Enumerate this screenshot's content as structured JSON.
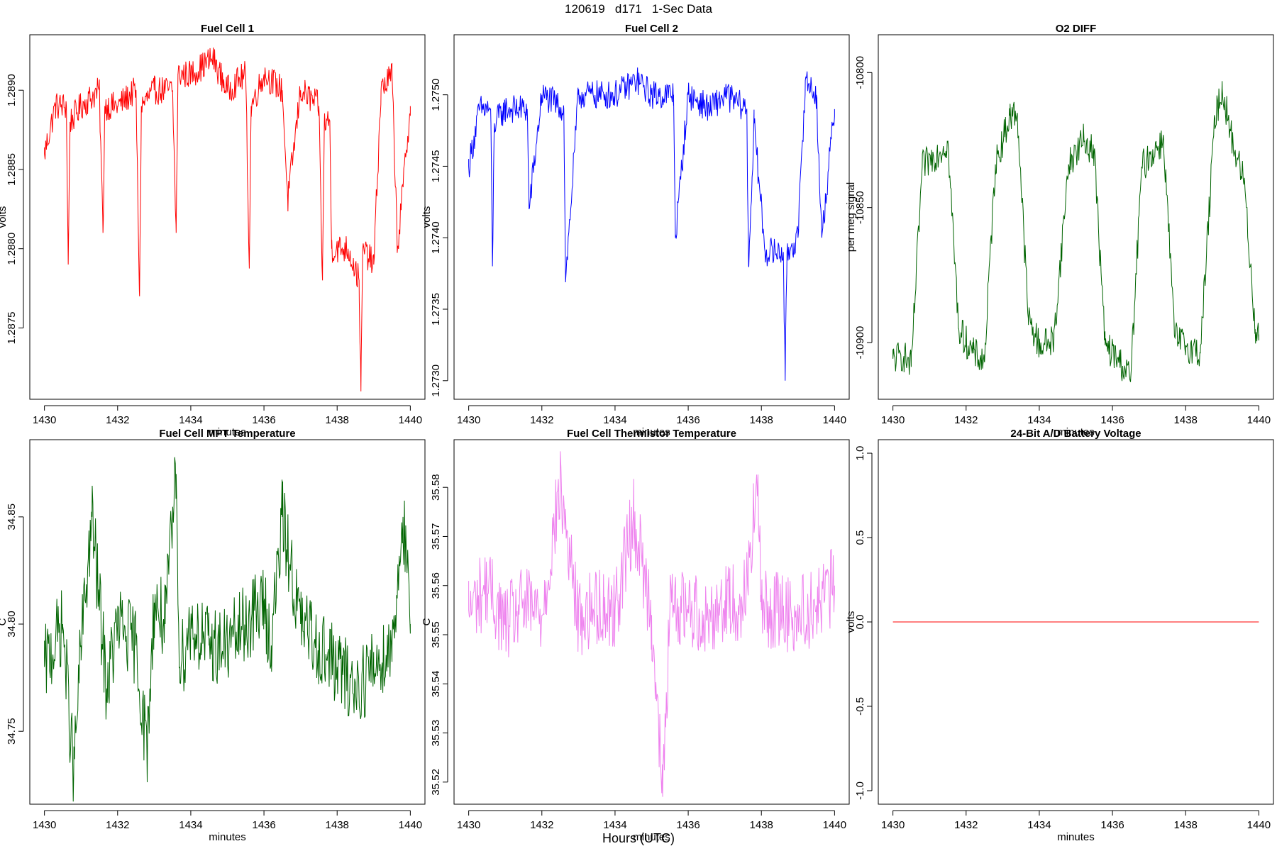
{
  "figure": {
    "title": "120619   d171   1-Sec Data",
    "xlabel": "Hours (UTC)"
  },
  "chart_data": [
    {
      "id": "fc1",
      "type": "line",
      "title": "Fuel Cell 1",
      "xlabel": "minutes",
      "ylabel": "volts",
      "color": "#ff0000",
      "xlim": [
        1429.6,
        1440.4
      ],
      "ylim": [
        1.28705,
        1.28935
      ],
      "xticks": [
        1430,
        1432,
        1434,
        1436,
        1438,
        1440
      ],
      "yticks": [
        1.2875,
        1.288,
        1.2885,
        1.289
      ],
      "ytick_labels": [
        "1.2875",
        "1.2880",
        "1.2885",
        "1.2890"
      ],
      "series": [
        {
          "x": [
            1430,
            1430.3,
            1430.6,
            1430.65,
            1430.7,
            1431,
            1431.5,
            1431.6,
            1431.65,
            1432,
            1432.5,
            1432.6,
            1432.65,
            1433,
            1433.5,
            1433.6,
            1433.65,
            1434,
            1434.6,
            1435,
            1435.5,
            1435.6,
            1435.65,
            1436,
            1436.5,
            1436.65,
            1437,
            1437.5,
            1437.6,
            1437.65,
            1437.8,
            1437.85,
            1438.3,
            1438.6,
            1438.65,
            1438.7,
            1439,
            1439.2,
            1439.5,
            1439.65,
            1440
          ],
          "y": [
            1.2886,
            1.2889,
            1.2889,
            1.2879,
            1.2888,
            1.2889,
            1.289,
            1.2881,
            1.2889,
            1.2889,
            1.289,
            1.2877,
            1.2889,
            1.289,
            1.289,
            1.2881,
            1.2891,
            1.2891,
            1.2892,
            1.289,
            1.2891,
            1.2879,
            1.2889,
            1.2891,
            1.289,
            1.2883,
            1.289,
            1.2889,
            1.2878,
            1.2888,
            1.2888,
            1.288,
            1.288,
            1.2878,
            1.2871,
            1.288,
            1.2879,
            1.289,
            1.2891,
            1.288,
            1.2889
          ]
        }
      ]
    },
    {
      "id": "fc2",
      "type": "line",
      "title": "Fuel Cell 2",
      "xlabel": "minutes",
      "ylabel": "volts",
      "color": "#0000ff",
      "xlim": [
        1429.6,
        1440.4
      ],
      "ylim": [
        1.27287,
        1.27542
      ],
      "xticks": [
        1430,
        1432,
        1434,
        1436,
        1438,
        1440
      ],
      "yticks": [
        1.273,
        1.2735,
        1.274,
        1.2745,
        1.275
      ],
      "ytick_labels": [
        "1.2730",
        "1.2735",
        "1.2740",
        "1.2745",
        "1.2750"
      ],
      "series": [
        {
          "x": [
            1430,
            1430.3,
            1430.6,
            1430.65,
            1430.7,
            1431,
            1431.6,
            1431.65,
            1432,
            1432.6,
            1432.65,
            1433,
            1433.6,
            1434,
            1434.6,
            1435,
            1435.6,
            1435.65,
            1436,
            1436.6,
            1437,
            1437.6,
            1437.65,
            1437.8,
            1438.1,
            1438.6,
            1438.65,
            1438.7,
            1439,
            1439.2,
            1439.5,
            1439.65,
            1440
          ],
          "y": [
            1.2745,
            1.2749,
            1.2749,
            1.2738,
            1.2748,
            1.2749,
            1.2749,
            1.2742,
            1.275,
            1.2749,
            1.2737,
            1.275,
            1.275,
            1.275,
            1.2751,
            1.275,
            1.275,
            1.274,
            1.275,
            1.2749,
            1.275,
            1.2749,
            1.2738,
            1.2748,
            1.2739,
            1.2739,
            1.273,
            1.2739,
            1.274,
            1.2751,
            1.275,
            1.274,
            1.2749
          ]
        }
      ]
    },
    {
      "id": "o2",
      "type": "line",
      "title": "O2 DIFF",
      "xlabel": "minutes",
      "ylabel": "per meg signal",
      "color": "#006400",
      "xlim": [
        1429.6,
        1440.4
      ],
      "ylim": [
        -10921,
        -10786
      ],
      "xticks": [
        1430,
        1432,
        1434,
        1436,
        1438,
        1440
      ],
      "yticks": [
        -10900,
        -10850,
        -10800
      ],
      "ytick_labels": [
        "-10900",
        "-10850",
        "-10800"
      ],
      "series": [
        {
          "x": [
            1430,
            1430.3,
            1430.5,
            1430.8,
            1431.2,
            1431.5,
            1431.8,
            1432.2,
            1432.5,
            1432.8,
            1433.2,
            1433.4,
            1433.7,
            1434,
            1434.4,
            1434.8,
            1435.2,
            1435.5,
            1435.8,
            1436.2,
            1436.5,
            1436.8,
            1437.2,
            1437.4,
            1437.7,
            1438,
            1438.4,
            1438.8,
            1439,
            1439.3,
            1439.6,
            1439.9,
            1440
          ],
          "y": [
            -10906,
            -10905,
            -10909,
            -10835,
            -10830,
            -10826,
            -10895,
            -10904,
            -10907,
            -10834,
            -10816,
            -10815,
            -10891,
            -10901,
            -10899,
            -10834,
            -10825,
            -10829,
            -10901,
            -10907,
            -10913,
            -10835,
            -10828,
            -10825,
            -10898,
            -10901,
            -10904,
            -10817,
            -10806,
            -10827,
            -10840,
            -10895,
            -10897
          ]
        }
      ]
    },
    {
      "id": "mpt",
      "type": "line",
      "title": "Fuel Cell MPT Temperature",
      "xlabel": "minutes",
      "ylabel": "C",
      "color": "#006400",
      "xlim": [
        1429.6,
        1440.4
      ],
      "ylim": [
        34.716,
        34.886
      ],
      "xticks": [
        1430,
        1432,
        1434,
        1436,
        1438,
        1440
      ],
      "yticks": [
        34.75,
        34.8,
        34.85
      ],
      "ytick_labels": [
        "34.75",
        "34.80",
        "34.85"
      ],
      "series": [
        {
          "x": [
            1430,
            1430.5,
            1430.8,
            1431,
            1431.3,
            1431.7,
            1432,
            1432.5,
            1432.8,
            1433,
            1433.3,
            1433.6,
            1433.7,
            1434,
            1434.5,
            1435,
            1435.5,
            1436,
            1436.2,
            1436.5,
            1437,
            1437.5,
            1438,
            1438.5,
            1439,
            1439.5,
            1439.8,
            1440
          ],
          "y": [
            34.78,
            34.8,
            34.73,
            34.79,
            34.85,
            34.77,
            34.8,
            34.79,
            34.74,
            34.81,
            34.8,
            34.87,
            34.78,
            34.8,
            34.79,
            34.79,
            34.8,
            34.81,
            34.79,
            34.85,
            34.8,
            34.79,
            34.78,
            34.77,
            34.78,
            34.79,
            34.85,
            34.8
          ]
        }
      ]
    },
    {
      "id": "therm",
      "type": "line",
      "title": "Fuel Cell Thermistor Temperature",
      "xlabel": "minutes",
      "ylabel": "C",
      "color": "#ee82ee",
      "xlim": [
        1429.6,
        1440.4
      ],
      "ylim": [
        35.5155,
        35.5897
      ],
      "xticks": [
        1430,
        1432,
        1434,
        1436,
        1438,
        1440
      ],
      "yticks": [
        35.52,
        35.53,
        35.54,
        35.55,
        35.56,
        35.57,
        35.58
      ],
      "ytick_labels": [
        "35.52",
        "35.53",
        "35.54",
        "35.55",
        "35.56",
        "35.57",
        "35.58"
      ],
      "series": [
        {
          "x": [
            1430,
            1430.5,
            1431,
            1431.5,
            1432,
            1432.5,
            1433,
            1433.5,
            1434,
            1434.5,
            1435,
            1435.3,
            1435.5,
            1436,
            1436.5,
            1437,
            1437.5,
            1437.9,
            1438,
            1438.5,
            1439,
            1439.5,
            1440
          ],
          "y": [
            35.555,
            35.56,
            35.552,
            35.556,
            35.554,
            35.58,
            35.553,
            35.556,
            35.555,
            35.574,
            35.554,
            35.517,
            35.555,
            35.556,
            35.553,
            35.557,
            35.556,
            35.58,
            35.555,
            35.555,
            35.554,
            35.556,
            35.56
          ]
        }
      ]
    },
    {
      "id": "batt",
      "type": "line",
      "title": "24-Bit A/D Battery Voltage",
      "xlabel": "minutes",
      "ylabel": "volts",
      "color": "#ff0000",
      "xlim": [
        1429.6,
        1440.4
      ],
      "ylim": [
        -1.08,
        1.08
      ],
      "xticks": [
        1430,
        1432,
        1434,
        1436,
        1438,
        1440
      ],
      "yticks": [
        -1,
        -0.5,
        0,
        0.5,
        1
      ],
      "ytick_labels": [
        "-1.0",
        "-0.5",
        "0.0",
        "0.5",
        "1.0"
      ],
      "series": [
        {
          "x": [
            1430,
            1440
          ],
          "y": [
            0,
            0
          ]
        }
      ]
    }
  ]
}
